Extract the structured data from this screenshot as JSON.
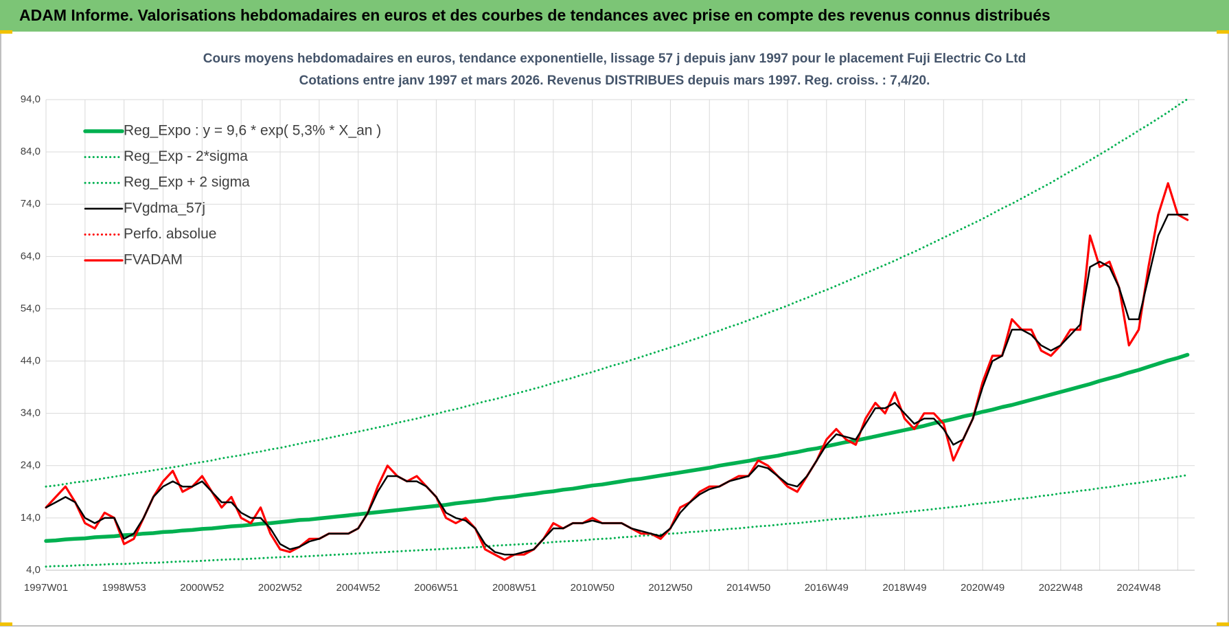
{
  "header": {
    "title": "ADAM Informe. Valorisations hebdomadaires en euros et des courbes de tendances avec prise en compte des revenus connus distribués"
  },
  "chart_data": {
    "type": "line",
    "title": "Cours moyens hebdomadaires en euros, tendance exponentielle, lissage 57 j depuis janv 1997 pour le placement Fuji Electric Co Ltd",
    "subtitle": "Cotations entre janv 1997 et mars 2026. Revenus DISTRIBUES depuis mars 1997. Reg. croiss. : 7,4/20.",
    "categories": [
      "1997W01",
      null,
      null,
      null,
      null,
      null,
      null,
      null,
      "1998W53",
      null,
      null,
      null,
      null,
      null,
      null,
      null,
      "2000W52",
      null,
      null,
      null,
      null,
      null,
      null,
      null,
      "2002W52",
      null,
      null,
      null,
      null,
      null,
      null,
      null,
      "2004W52",
      null,
      null,
      null,
      null,
      null,
      null,
      null,
      "2006W51",
      null,
      null,
      null,
      null,
      null,
      null,
      null,
      "2008W51",
      null,
      null,
      null,
      null,
      null,
      null,
      null,
      "2010W50",
      null,
      null,
      null,
      null,
      null,
      null,
      null,
      "2012W50",
      null,
      null,
      null,
      null,
      null,
      null,
      null,
      "2014W50",
      null,
      null,
      null,
      null,
      null,
      null,
      null,
      "2016W49",
      null,
      null,
      null,
      null,
      null,
      null,
      null,
      "2018W49",
      null,
      null,
      null,
      null,
      null,
      null,
      null,
      "2020W49",
      null,
      null,
      null,
      null,
      null,
      null,
      null,
      "2022W48",
      null,
      null,
      null,
      null,
      null,
      null,
      null,
      "2024W48",
      null,
      null,
      null,
      null,
      null
    ],
    "ylim": [
      4,
      94
    ],
    "yticks": [
      {
        "value": 4,
        "label": "4,0"
      },
      {
        "value": 14,
        "label": "14,0"
      },
      {
        "value": 24,
        "label": "24,0"
      },
      {
        "value": 34,
        "label": "34,0"
      },
      {
        "value": 44,
        "label": "44,0"
      },
      {
        "value": 54,
        "label": "54,0"
      },
      {
        "value": 64,
        "label": "64,0"
      },
      {
        "value": 74,
        "label": "74,0"
      },
      {
        "value": 84,
        "label": "84,0"
      },
      {
        "value": 94,
        "label": "94,0"
      }
    ],
    "grid": true,
    "legend": "upper left",
    "series": [
      {
        "name": "Reg_Expo : y = 9,6 * exp( 5,3% *  X_an )",
        "color": "#00b050",
        "line_style": "thick",
        "values": [
          9.6,
          9.7,
          9.9,
          10.0,
          10.1,
          10.3,
          10.4,
          10.5,
          10.7,
          10.8,
          11.0,
          11.1,
          11.3,
          11.4,
          11.6,
          11.7,
          11.9,
          12.0,
          12.2,
          12.4,
          12.5,
          12.7,
          12.9,
          13.0,
          13.2,
          13.4,
          13.6,
          13.7,
          13.9,
          14.1,
          14.3,
          14.5,
          14.7,
          14.9,
          15.1,
          15.3,
          15.5,
          15.7,
          15.9,
          16.1,
          16.3,
          16.5,
          16.8,
          17.0,
          17.2,
          17.4,
          17.7,
          17.9,
          18.1,
          18.4,
          18.6,
          18.9,
          19.1,
          19.4,
          19.6,
          19.9,
          20.2,
          20.4,
          20.7,
          21.0,
          21.3,
          21.5,
          21.8,
          22.1,
          22.4,
          22.7,
          23.0,
          23.3,
          23.6,
          24.0,
          24.3,
          24.6,
          24.9,
          25.3,
          25.6,
          25.9,
          26.3,
          26.6,
          27.0,
          27.3,
          27.7,
          28.1,
          28.5,
          28.8,
          29.2,
          29.6,
          30.0,
          30.4,
          30.8,
          31.2,
          31.6,
          32.1,
          32.5,
          32.9,
          33.4,
          33.8,
          34.3,
          34.7,
          35.2,
          35.6,
          36.1,
          36.6,
          37.1,
          37.6,
          38.1,
          38.6,
          39.1,
          39.6,
          40.2,
          40.7,
          41.2,
          41.8,
          42.3,
          42.9,
          43.5,
          44.1,
          44.6,
          45.2
        ]
      },
      {
        "name": "Reg_Exp - 2*sigma",
        "color": "#00b050",
        "line_style": "dotted",
        "values": [
          4.7,
          4.8,
          4.8,
          4.9,
          5.0,
          5.0,
          5.1,
          5.2,
          5.2,
          5.3,
          5.4,
          5.4,
          5.5,
          5.6,
          5.7,
          5.7,
          5.8,
          5.9,
          6.0,
          6.1,
          6.1,
          6.2,
          6.3,
          6.4,
          6.5,
          6.6,
          6.6,
          6.7,
          6.8,
          6.9,
          7.0,
          7.1,
          7.2,
          7.3,
          7.4,
          7.5,
          7.6,
          7.7,
          7.8,
          7.9,
          8.0,
          8.1,
          8.2,
          8.3,
          8.4,
          8.5,
          8.7,
          8.8,
          8.9,
          9.0,
          9.1,
          9.2,
          9.4,
          9.5,
          9.6,
          9.7,
          9.9,
          10.0,
          10.1,
          10.3,
          10.4,
          10.6,
          10.7,
          10.8,
          11.0,
          11.1,
          11.3,
          11.4,
          11.6,
          11.7,
          11.9,
          12.0,
          12.2,
          12.4,
          12.5,
          12.7,
          12.9,
          13.0,
          13.2,
          13.4,
          13.6,
          13.8,
          13.9,
          14.1,
          14.3,
          14.5,
          14.7,
          14.9,
          15.1,
          15.3,
          15.5,
          15.7,
          15.9,
          16.1,
          16.3,
          16.6,
          16.8,
          17.0,
          17.2,
          17.5,
          17.7,
          17.9,
          18.2,
          18.4,
          18.7,
          18.9,
          19.2,
          19.4,
          19.7,
          19.9,
          20.2,
          20.5,
          20.7,
          21.0,
          21.3,
          21.6,
          21.9,
          22.2
        ]
      },
      {
        "name": "Reg_Exp + 2 sigma",
        "color": "#00b050",
        "line_style": "dotted",
        "values": [
          20.0,
          20.2,
          20.5,
          20.8,
          21.0,
          21.3,
          21.6,
          21.9,
          22.2,
          22.5,
          22.8,
          23.1,
          23.4,
          23.7,
          24.0,
          24.4,
          24.7,
          25.0,
          25.4,
          25.7,
          26.0,
          26.4,
          26.7,
          27.1,
          27.4,
          27.8,
          28.2,
          28.6,
          28.9,
          29.3,
          29.7,
          30.1,
          30.5,
          30.9,
          31.3,
          31.7,
          32.2,
          32.6,
          33.0,
          33.5,
          33.9,
          34.4,
          34.8,
          35.3,
          35.8,
          36.3,
          36.7,
          37.2,
          37.7,
          38.2,
          38.7,
          39.2,
          39.8,
          40.3,
          40.8,
          41.4,
          41.9,
          42.5,
          43.1,
          43.6,
          44.2,
          44.8,
          45.4,
          46.0,
          46.6,
          47.2,
          47.9,
          48.5,
          49.2,
          49.8,
          50.5,
          51.1,
          51.8,
          52.5,
          53.2,
          53.9,
          54.6,
          55.4,
          56.1,
          56.9,
          57.6,
          58.4,
          59.2,
          60.0,
          60.8,
          61.6,
          62.4,
          63.2,
          64.1,
          64.9,
          65.8,
          66.7,
          67.6,
          68.5,
          69.4,
          70.3,
          71.2,
          72.2,
          73.2,
          74.1,
          75.1,
          76.1,
          77.1,
          78.1,
          79.2,
          80.3,
          81.3,
          82.4,
          83.5,
          84.6,
          85.8,
          86.9,
          88.1,
          89.2,
          90.4,
          91.6,
          92.9,
          94.1
        ]
      },
      {
        "name": "FVgdma_57j",
        "color": "#000000",
        "line_style": "solid",
        "values": [
          16,
          17,
          18,
          17,
          14,
          13,
          14,
          14,
          10,
          11,
          14,
          18,
          20,
          21,
          20,
          20,
          21,
          19,
          17,
          17,
          15,
          14,
          14,
          12,
          9,
          8,
          8.5,
          9.5,
          10,
          11,
          11,
          11,
          12,
          15,
          19,
          22,
          22,
          21,
          21,
          20,
          18,
          15,
          14,
          13.5,
          12,
          9,
          7.5,
          7,
          7,
          7.5,
          8,
          10,
          12,
          12,
          13,
          13,
          13.5,
          13,
          13,
          13,
          12,
          11.5,
          11,
          10.5,
          12,
          15,
          17,
          18.5,
          19.5,
          20,
          21,
          21.5,
          22,
          24,
          23.5,
          22,
          20.5,
          20,
          22,
          25,
          28,
          30,
          29.5,
          29,
          32,
          35,
          35,
          36,
          34,
          32,
          33,
          33,
          31,
          28,
          29,
          33,
          39,
          44,
          45,
          50,
          50,
          49,
          47,
          46,
          47,
          49,
          51,
          62,
          63,
          62,
          58,
          52,
          52,
          60,
          68,
          72,
          72,
          72
        ]
      },
      {
        "name": "Perfo. absolue",
        "color": "#ff0000",
        "line_style": "dotted",
        "values": [
          null,
          null,
          null,
          null,
          null,
          null,
          null,
          null,
          null,
          null,
          null,
          null,
          null,
          null,
          null,
          null,
          null,
          null,
          null,
          null,
          null,
          null,
          null,
          null,
          null,
          null,
          null,
          null,
          null,
          null,
          null,
          null,
          null,
          null,
          null,
          null,
          null,
          null,
          null,
          null,
          null,
          null,
          null,
          null,
          null,
          null,
          null,
          null,
          null,
          null,
          null,
          null,
          null,
          null,
          null,
          null,
          null,
          null,
          null,
          null,
          null,
          null,
          null,
          null,
          null,
          null,
          null,
          null,
          null,
          null,
          null,
          null,
          null,
          null,
          null,
          null,
          null,
          null,
          null,
          null,
          null,
          null,
          null,
          null,
          null,
          null,
          null,
          null,
          null,
          null,
          null,
          null,
          null,
          null,
          null,
          null,
          null,
          null,
          null,
          null,
          null,
          null,
          null,
          null,
          null,
          null,
          null,
          null,
          null,
          null,
          null,
          null,
          null,
          null,
          null,
          null,
          null,
          null
        ]
      },
      {
        "name": "FVADAM",
        "color": "#ff0000",
        "line_style": "solid",
        "values": [
          16,
          18,
          20,
          17,
          13,
          12,
          15,
          14,
          9,
          10,
          14,
          18,
          21,
          23,
          19,
          20,
          22,
          19,
          16,
          18,
          14,
          13,
          16,
          11,
          8,
          7.5,
          8.5,
          10,
          10,
          11,
          11,
          11,
          12,
          15,
          20,
          24,
          22,
          21,
          22,
          20,
          18,
          14,
          13,
          14,
          12,
          8,
          7,
          6,
          7,
          7,
          8,
          10,
          13,
          12,
          13,
          13,
          14,
          13,
          13,
          13,
          12,
          11,
          11,
          10,
          12,
          16,
          17,
          19,
          20,
          20,
          21,
          22,
          22,
          25,
          24,
          22,
          20,
          19,
          22,
          25,
          29,
          31,
          29,
          28,
          33,
          36,
          34,
          38,
          33,
          31,
          34,
          34,
          32,
          25,
          29,
          33,
          40,
          45,
          45,
          52,
          50,
          50,
          46,
          45,
          47,
          50,
          50,
          68,
          62,
          63,
          58,
          47,
          50,
          62,
          72,
          78,
          72,
          71
        ]
      }
    ]
  }
}
